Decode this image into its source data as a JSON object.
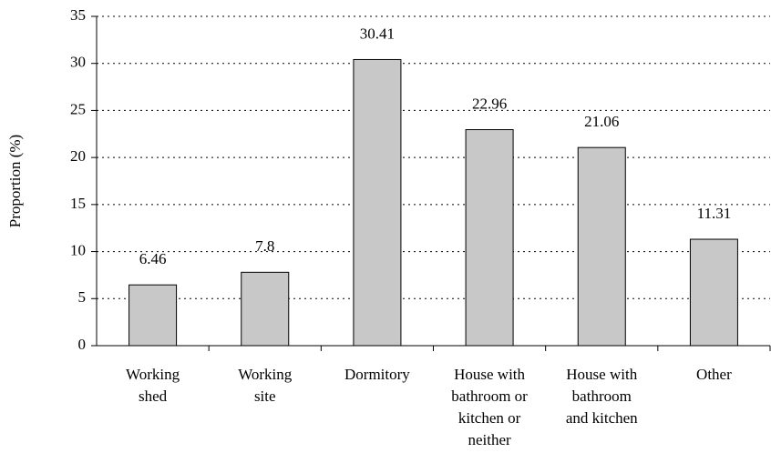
{
  "chart_data": {
    "type": "bar",
    "y_label": "Proportion (%)",
    "categories": [
      [
        "Working",
        "shed"
      ],
      [
        "Working",
        "site"
      ],
      [
        "Dormitory"
      ],
      [
        "House with",
        "bathroom or",
        "kitchen or",
        "neither"
      ],
      [
        "House with",
        "bathroom",
        "and kitchen"
      ],
      [
        "Other"
      ]
    ],
    "values": [
      6.46,
      7.8,
      30.41,
      22.96,
      21.06,
      11.31
    ],
    "color": "#c8c8c8",
    "ylim": [
      0,
      35
    ],
    "yticks": [
      0,
      5,
      10,
      15,
      20,
      25,
      30,
      35
    ],
    "grid": true
  }
}
